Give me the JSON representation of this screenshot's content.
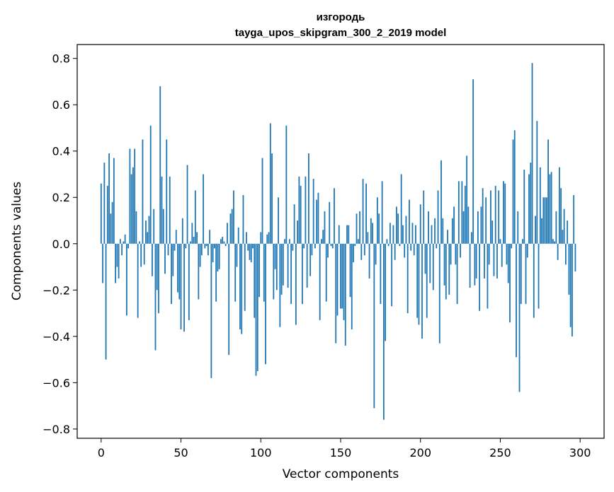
{
  "chart_data": {
    "type": "bar",
    "title_lines": [
      "изгородь",
      "tayga_upos_skipgram_300_2_2019 model"
    ],
    "xlabel": "Vector components",
    "ylabel": "Components values",
    "xlim": [
      -15,
      315
    ],
    "ylim": [
      -0.84,
      0.86
    ],
    "xticks": [
      0,
      50,
      100,
      150,
      200,
      250,
      300
    ],
    "yticks": [
      -0.8,
      -0.6,
      -0.4,
      -0.2,
      0.0,
      0.2,
      0.4,
      0.6,
      0.8
    ],
    "xtick_labels": [
      "0",
      "50",
      "100",
      "150",
      "200",
      "250",
      "300"
    ],
    "ytick_labels": [
      "−0.8",
      "−0.6",
      "−0.4",
      "−0.2",
      "0.0",
      "0.2",
      "0.4",
      "0.6",
      "0.8"
    ],
    "bar_color": "#1f77b4",
    "grid": false,
    "values": [
      0.26,
      -0.17,
      0.35,
      -0.5,
      0.25,
      0.39,
      0.13,
      0.18,
      0.37,
      -0.17,
      -0.1,
      -0.15,
      0.02,
      -0.05,
      0.01,
      0.04,
      -0.31,
      -0.02,
      0.41,
      0.3,
      0.33,
      0.41,
      0.14,
      -0.32,
      0.01,
      -0.1,
      0.45,
      -0.09,
      0.1,
      0.05,
      0.12,
      0.51,
      -0.14,
      0.15,
      -0.46,
      -0.2,
      -0.3,
      0.68,
      0.29,
      0.15,
      -0.13,
      0.45,
      -0.05,
      0.29,
      -0.26,
      -0.14,
      -0.03,
      0.06,
      -0.21,
      -0.24,
      -0.37,
      0.11,
      -0.38,
      -0.02,
      0.34,
      -0.33,
      0.01,
      0.09,
      0.03,
      0.23,
      0.05,
      -0.24,
      -0.1,
      -0.05,
      0.3,
      -0.02,
      -0.01,
      -0.05,
      0.06,
      -0.58,
      -0.08,
      -0.02,
      -0.25,
      -0.12,
      -0.11,
      0.02,
      0.03,
      0.01,
      -0.01,
      0.09,
      -0.48,
      0.13,
      0.15,
      0.23,
      -0.25,
      -0.1,
      0.07,
      -0.37,
      -0.39,
      0.21,
      -0.29,
      0.05,
      -0.03,
      -0.07,
      -0.08,
      -0.02,
      -0.32,
      -0.57,
      -0.55,
      -0.23,
      0.05,
      0.37,
      -0.25,
      -0.52,
      0.04,
      0.05,
      0.52,
      0.39,
      -0.24,
      -0.11,
      -0.2,
      0.2,
      -0.36,
      -0.22,
      -0.18,
      0.02,
      0.51,
      -0.19,
      0.02,
      -0.26,
      -0.03,
      0.17,
      -0.35,
      0.1,
      0.29,
      0.25,
      -0.26,
      -0.02,
      0.29,
      -0.19,
      0.39,
      -0.14,
      -0.05,
      0.28,
      -0.02,
      0.19,
      0.22,
      -0.33,
      0.02,
      0.06,
      0.14,
      -0.25,
      -0.06,
      0.18,
      -0.01,
      -0.02,
      0.24,
      -0.43,
      -0.31,
      0.08,
      -0.28,
      -0.28,
      -0.33,
      -0.44,
      0.08,
      0.08,
      -0.23,
      -0.37,
      -0.08,
      -0.01,
      0.13,
      0.02,
      0.14,
      -0.07,
      0.28,
      -0.05,
      0.26,
      0.05,
      -0.15,
      0.11,
      0.09,
      -0.71,
      -0.09,
      0.2,
      0.13,
      -0.26,
      0.27,
      -0.76,
      -0.42,
      0.02,
      -0.01,
      0.09,
      -0.27,
      0.08,
      -0.07,
      0.16,
      0.13,
      -0.01,
      0.3,
      0.08,
      -0.06,
      0.12,
      -0.3,
      0.19,
      -0.03,
      0.09,
      -0.05,
      0.08,
      -0.32,
      -0.35,
      0.17,
      -0.41,
      0.23,
      -0.13,
      -0.32,
      0.14,
      -0.17,
      0.08,
      -0.2,
      0.11,
      -0.02,
      0.23,
      -0.43,
      0.36,
      0.11,
      -0.18,
      -0.24,
      0.06,
      -0.22,
      -0.09,
      0.11,
      0.16,
      -0.09,
      -0.26,
      0.27,
      -0.06,
      0.27,
      0.14,
      0.25,
      0.38,
      0.16,
      -0.19,
      0.05,
      0.71,
      -0.18,
      -0.15,
      0.14,
      -0.29,
      0.16,
      0.24,
      -0.15,
      0.2,
      -0.28,
      -0.09,
      0.23,
      0.1,
      -0.14,
      0.25,
      -0.15,
      0.23,
      0.02,
      -0.1,
      0.27,
      0.26,
      -0.09,
      -0.17,
      -0.34,
      -0.02,
      0.45,
      0.49,
      -0.49,
      0.14,
      -0.64,
      -0.26,
      0.02,
      0.32,
      -0.26,
      -0.06,
      0.3,
      0.35,
      0.78,
      -0.32,
      0.12,
      0.53,
      -0.28,
      0.33,
      0.11,
      0.2,
      0.2,
      0.2,
      0.45,
      0.3,
      0.31,
      0.02,
      0.01,
      0.14,
      -0.07,
      0.33,
      0.24,
      0.06,
      0.15,
      -0.09,
      0.1,
      -0.22,
      -0.36,
      -0.4,
      0.21,
      -0.12
    ]
  }
}
